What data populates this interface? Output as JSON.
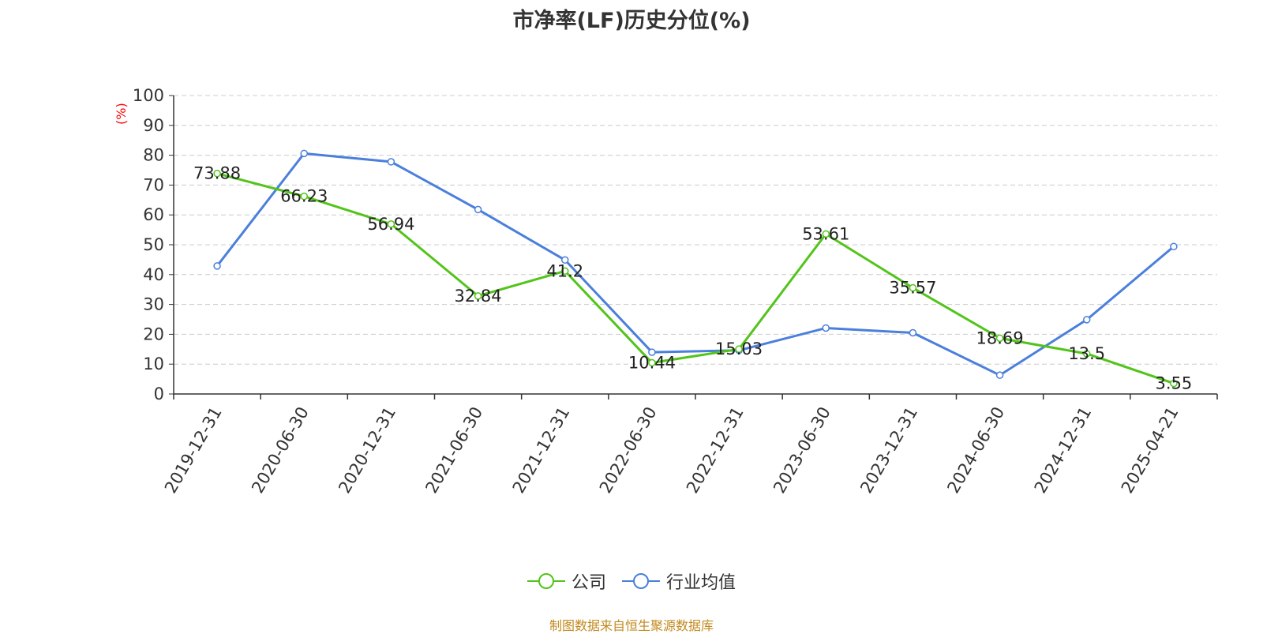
{
  "chart_data": {
    "type": "line",
    "title": "市净率(LF)历史分位(%)",
    "ylabel": "(%)",
    "ylim": [
      0,
      100
    ],
    "yticks": [
      0,
      10,
      20,
      30,
      40,
      50,
      60,
      70,
      80,
      90,
      100
    ],
    "grid": true,
    "legend_position": "bottom",
    "categories": [
      "2019-12-31",
      "2020-06-30",
      "2020-12-31",
      "2021-06-30",
      "2021-12-31",
      "2022-06-30",
      "2022-12-31",
      "2023-06-30",
      "2023-12-31",
      "2024-06-30",
      "2024-12-31",
      "2025-04-21"
    ],
    "series": [
      {
        "name": "公司",
        "color": "#52c41a",
        "values": [
          73.88,
          66.23,
          56.94,
          32.84,
          41.2,
          10.44,
          15.03,
          53.61,
          35.57,
          18.69,
          13.5,
          3.55
        ],
        "labels": [
          "73.88",
          "66.23",
          "56.94",
          "32.84",
          "41.2",
          "10.44",
          "15.03",
          "53.61",
          "35.57",
          "18.69",
          "13.5",
          "3.55"
        ]
      },
      {
        "name": "行业均值",
        "color": "#4a7fdc",
        "values": [
          42.9,
          80.6,
          77.8,
          61.8,
          44.9,
          14.0,
          14.6,
          22.1,
          20.5,
          6.3,
          24.9,
          49.4
        ]
      }
    ]
  },
  "source": "制图数据来自恒生聚源数据库"
}
